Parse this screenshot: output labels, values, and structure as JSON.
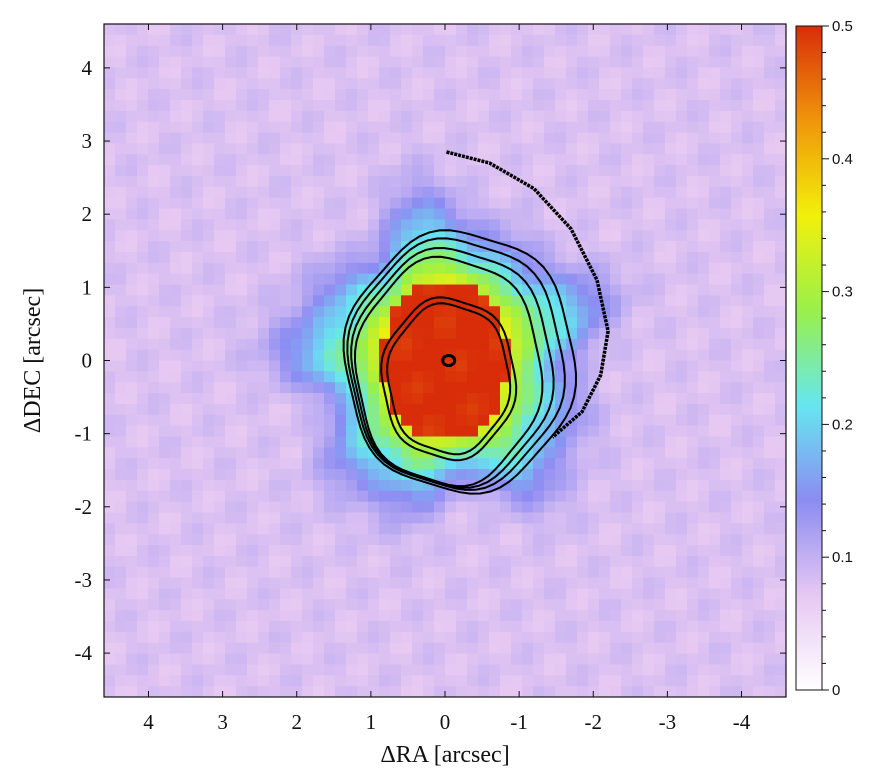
{
  "chart_data": {
    "type": "heatmap",
    "xlabel": "ΔRA [arcsec]",
    "ylabel": "ΔDEC [arcsec]",
    "xlim": [
      4.6,
      -4.6
    ],
    "ylim": [
      -4.6,
      4.6
    ],
    "x_ticks": [
      4,
      3,
      2,
      1,
      0,
      -1,
      -2,
      -3,
      -4
    ],
    "y_ticks": [
      4,
      3,
      2,
      1,
      0,
      -1,
      -2,
      -3,
      -4
    ],
    "colorbar": {
      "range": [
        0,
        0.5
      ],
      "ticks": [
        0,
        0.1,
        0.2,
        0.3,
        0.4,
        0.5
      ],
      "stops": [
        "#ffffff",
        "#e6c8f2",
        "#8c8cf2",
        "#66e6f0",
        "#99f04a",
        "#f2f00a",
        "#f0960a",
        "#d92d0a"
      ]
    },
    "image_features": {
      "background_level": 0.08,
      "core_level": 0.5,
      "core_center": [
        0.0,
        0.0
      ],
      "core_semi_axes": [
        0.85,
        1.1
      ],
      "halo_radius": 1.8
    },
    "contours": {
      "color": "#000000",
      "rings": [
        {
          "rx": 1.25,
          "ry": 1.55,
          "cx": -0.05,
          "cy": -0.15
        },
        {
          "rx": 1.35,
          "ry": 1.62,
          "cx": -0.1,
          "cy": -0.1
        },
        {
          "rx": 1.45,
          "ry": 1.7,
          "cx": -0.15,
          "cy": -0.05
        },
        {
          "rx": 1.55,
          "ry": 1.78,
          "cx": -0.2,
          "cy": -0.02
        },
        {
          "rx": 0.9,
          "ry": 1.1,
          "cx": -0.05,
          "cy": -0.25
        },
        {
          "rx": 0.82,
          "ry": 1.02,
          "cx": -0.05,
          "cy": -0.25
        }
      ],
      "spiral_arm": [
        [
          -0.02,
          2.85
        ],
        [
          -0.6,
          2.7
        ],
        [
          -1.2,
          2.35
        ],
        [
          -1.7,
          1.8
        ],
        [
          -2.05,
          1.1
        ],
        [
          -2.2,
          0.4
        ],
        [
          -2.1,
          -0.2
        ],
        [
          -1.85,
          -0.7
        ],
        [
          -1.45,
          -1.05
        ]
      ],
      "nucleus": {
        "x": -0.05,
        "y": 0.0
      }
    }
  }
}
